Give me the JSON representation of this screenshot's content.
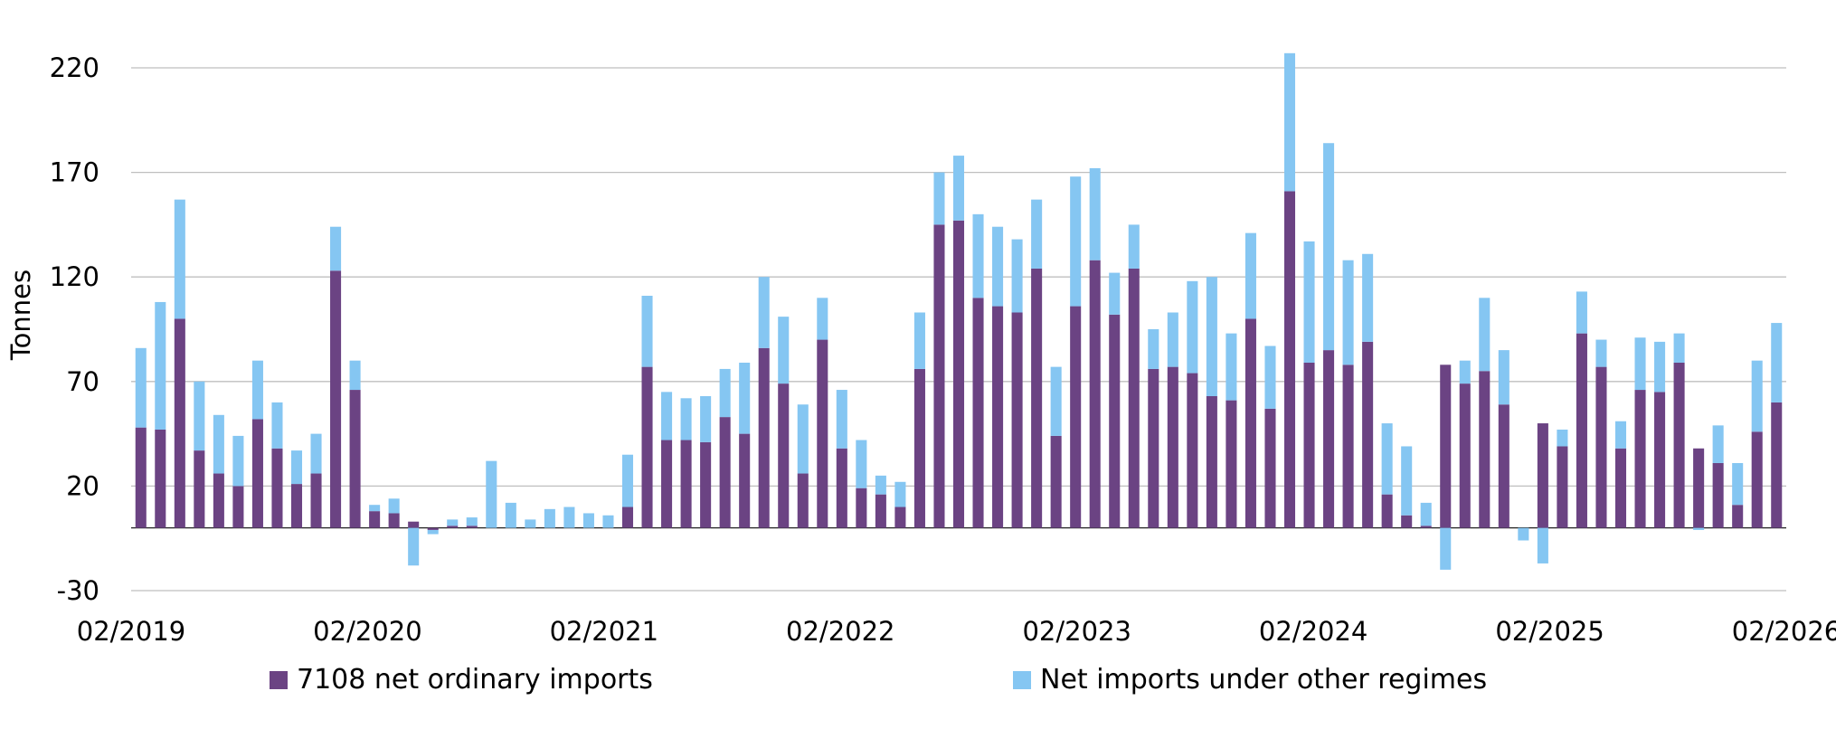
{
  "chart_data": {
    "type": "bar",
    "stacked": true,
    "ylabel": "Tonnes",
    "ylim": [
      -30,
      220
    ],
    "y_ticks": [
      220,
      170,
      120,
      70,
      20,
      -30
    ],
    "x_tick_labels": [
      "02/2019",
      "02/2020",
      "02/2021",
      "02/2022",
      "02/2023",
      "02/2024",
      "02/2025",
      "02/2026"
    ],
    "grid": true,
    "legend": "bottom",
    "series": [
      {
        "name": "7108 net ordinary imports",
        "color": "#6b4383",
        "values": [
          48,
          47,
          100,
          37,
          26,
          20,
          52,
          38,
          21,
          26,
          123,
          66,
          8,
          7,
          3,
          -1,
          1,
          1,
          0,
          0,
          0,
          0,
          0,
          0,
          0,
          10,
          77,
          42,
          42,
          41,
          53,
          45,
          86,
          69,
          26,
          90,
          38,
          19,
          16,
          10,
          76,
          145,
          147,
          110,
          106,
          103,
          124,
          44,
          106,
          128,
          102,
          124,
          76,
          77,
          74,
          63,
          61,
          100,
          57,
          161,
          79,
          85,
          78,
          89,
          16,
          6,
          1,
          78,
          69,
          75,
          59,
          0,
          50,
          39,
          93,
          77,
          38,
          66,
          65,
          79,
          38,
          31,
          11,
          46,
          60
        ]
      },
      {
        "name": "Net imports under other regimes",
        "color": "#85c6f2",
        "values": [
          38,
          61,
          57,
          33,
          28,
          24,
          28,
          22,
          16,
          19,
          21,
          14,
          3,
          7,
          -18,
          -2,
          3,
          4,
          32,
          12,
          4,
          9,
          10,
          7,
          6,
          25,
          34,
          23,
          20,
          22,
          23,
          34,
          34,
          32,
          33,
          20,
          28,
          23,
          9,
          12,
          27,
          25,
          31,
          40,
          38,
          35,
          33,
          33,
          62,
          44,
          20,
          21,
          19,
          26,
          44,
          57,
          32,
          41,
          30,
          66,
          58,
          99,
          50,
          42,
          34,
          33,
          11,
          -20,
          11,
          35,
          26,
          -6,
          -17,
          8,
          20,
          13,
          13,
          25,
          24,
          14,
          -1,
          18,
          20,
          34,
          38
        ]
      }
    ]
  }
}
